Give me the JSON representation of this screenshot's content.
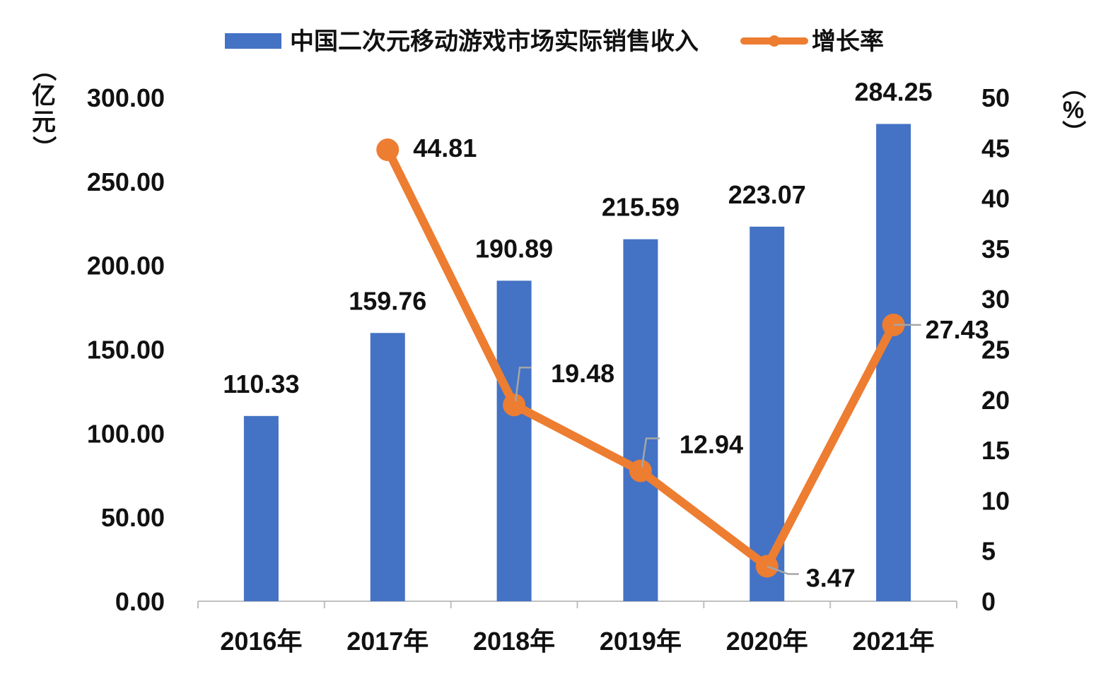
{
  "chart_data": {
    "type": "bar+line",
    "categories": [
      "2016年",
      "2017年",
      "2018年",
      "2019年",
      "2020年",
      "2021年"
    ],
    "series": [
      {
        "name": "中国二次元移动游戏市场实际销售收入",
        "type": "bar",
        "axis": "left",
        "values": [
          110.33,
          159.76,
          190.89,
          215.59,
          223.07,
          284.25
        ],
        "labels": [
          "110.33",
          "159.76",
          "190.89",
          "215.59",
          "223.07",
          "284.25"
        ]
      },
      {
        "name": "增长率",
        "type": "line",
        "axis": "right",
        "values": [
          null,
          44.81,
          19.48,
          12.94,
          3.47,
          27.43
        ],
        "labels": [
          "",
          "44.81",
          "19.48",
          "12.94",
          "3.47",
          "27.43"
        ]
      }
    ],
    "left_axis": {
      "unit": "（亿元）",
      "ylim": [
        0,
        300
      ],
      "ticks": [
        "0.00",
        "50.00",
        "100.00",
        "150.00",
        "200.00",
        "250.00",
        "300.00"
      ]
    },
    "right_axis": {
      "unit": "（%）",
      "ylim": [
        0,
        50
      ],
      "ticks": [
        "0",
        "5",
        "10",
        "15",
        "20",
        "25",
        "30",
        "35",
        "40",
        "45",
        "50"
      ]
    },
    "legend_position": "top",
    "grid": false,
    "colors": {
      "bar": "#4472C4",
      "line": "#ED7D31",
      "axis": "#BFBFBF",
      "leader": "#A6A6A6"
    }
  }
}
